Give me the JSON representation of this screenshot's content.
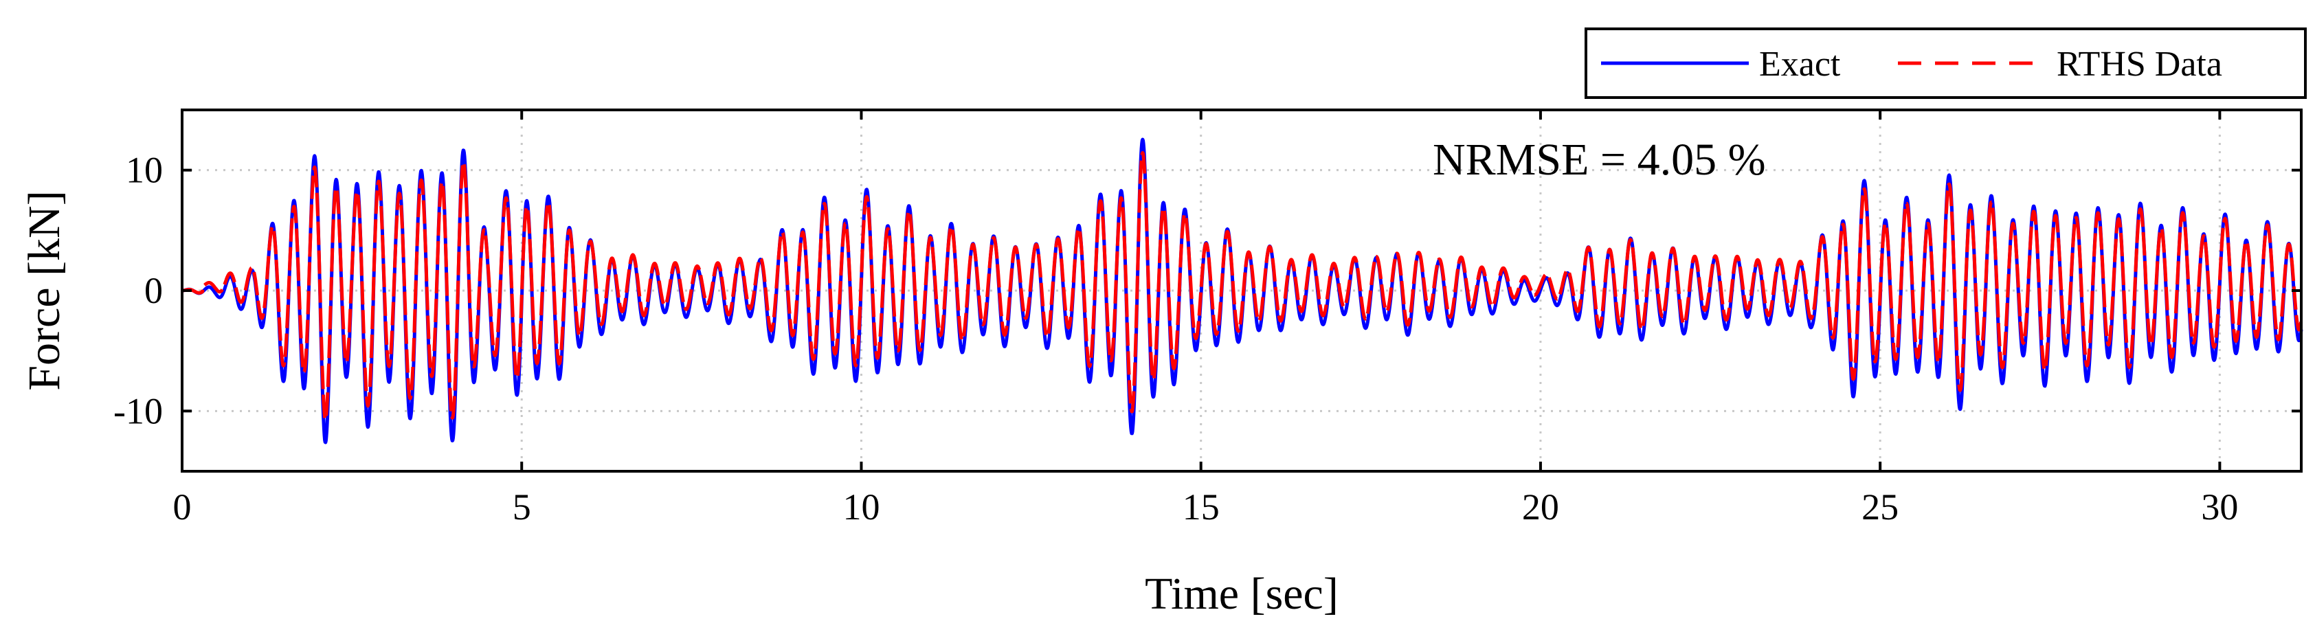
{
  "chart_data": {
    "type": "line",
    "title": "",
    "xlabel": "Time [sec]",
    "ylabel": "Force [kN]",
    "xlim": [
      0,
      31.2
    ],
    "ylim": [
      -15,
      15
    ],
    "xticks": [
      0,
      5,
      10,
      15,
      20,
      25,
      30
    ],
    "yticks": [
      -10,
      0,
      10
    ],
    "ytick_labels": [
      "-10",
      "0",
      "10"
    ],
    "grid": true,
    "legend_position": "top-right, outside",
    "annotation": "NRMSE = 4.05 %",
    "envelope_x": [
      0,
      0.5,
      1.0,
      1.3,
      1.7,
      2.1,
      2.5,
      2.8,
      3.1,
      3.5,
      3.9,
      4.2,
      4.5,
      4.8,
      5.0,
      5.3,
      5.6,
      6.0,
      6.5,
      7.0,
      7.5,
      8.0,
      8.5,
      9.0,
      9.5,
      10.0,
      10.5,
      11.0,
      11.5,
      12.0,
      12.5,
      13.0,
      13.5,
      13.8,
      14.1,
      14.4,
      14.8,
      15.2,
      15.6,
      16.0,
      16.5,
      17.0,
      17.5,
      18.0,
      18.5,
      19.0,
      19.5,
      20.0,
      20.3,
      20.6,
      21.0,
      21.5,
      22.0,
      22.5,
      23.0,
      23.5,
      24.0,
      24.3,
      24.6,
      25.0,
      25.5,
      26.0,
      26.2,
      26.5,
      27.0,
      27.5,
      28.0,
      28.5,
      29.0,
      29.5,
      30.0,
      30.5,
      31.2
    ],
    "envelope_amp": [
      0,
      0.5,
      2,
      5,
      10,
      12,
      9,
      11,
      10,
      10,
      12.5,
      11,
      6,
      8,
      11,
      7,
      8,
      4,
      3,
      2.5,
      2,
      2.5,
      3,
      6,
      7.5,
      8,
      7,
      6,
      5,
      4.5,
      4,
      5,
      8,
      10,
      12.5,
      10,
      6,
      5,
      4.5,
      3.5,
      3,
      2.5,
      3,
      3.5,
      3,
      2.5,
      1.5,
      0.8,
      1.5,
      3,
      4.5,
      4,
      3.5,
      3,
      3,
      2.5,
      3,
      6,
      9,
      8,
      7,
      9,
      10,
      8,
      7,
      7.5,
      7,
      7.5,
      7,
      6.5,
      6,
      5.5,
      5
    ],
    "series": [
      {
        "name": "Exact",
        "color": "#0000ff",
        "style": "solid",
        "freq_hz": 3.2,
        "offset": 0,
        "scale": 1.0
      },
      {
        "name": "RTHS Data",
        "color": "#ff0000",
        "style": "dashed",
        "freq_hz": 3.2,
        "offset": 0.4,
        "scale": 0.88
      }
    ]
  }
}
